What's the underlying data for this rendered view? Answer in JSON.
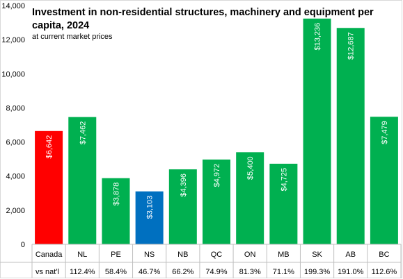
{
  "chart_data": {
    "type": "bar",
    "title": "Investment in non-residential structures, machinery and equipment per capita, 2024",
    "subtitle": "at current market prices",
    "categories": [
      "Canada",
      "NL",
      "PE",
      "NS",
      "NB",
      "QC",
      "ON",
      "MB",
      "SK",
      "AB",
      "BC"
    ],
    "values": [
      6642,
      7462,
      3878,
      3103,
      4396,
      4972,
      5400,
      4725,
      13236,
      12687,
      7479
    ],
    "data_labels": [
      "$6,642",
      "$7,462",
      "$3,878",
      "$3,103",
      "$4,396",
      "$4,972",
      "$5,400",
      "$4,725",
      "$13,236",
      "$12,687",
      "$7,479"
    ],
    "colors": [
      "#ff0000",
      "#00b050",
      "#00b050",
      "#0070c0",
      "#00b050",
      "#00b050",
      "#00b050",
      "#00b050",
      "#00b050",
      "#00b050",
      "#00b050"
    ],
    "ylim": [
      0,
      14000
    ],
    "yticks": [
      0,
      2000,
      4000,
      6000,
      8000,
      10000,
      12000,
      14000
    ],
    "ytick_labels": [
      "0",
      "2,000",
      "4,000",
      "6,000",
      "8,000",
      "10,000",
      "12,000",
      "14,000"
    ],
    "grid": false,
    "legend": "none",
    "secondary_row": {
      "label": "vs nat'l",
      "values": [
        "",
        "112.4%",
        "58.4%",
        "46.7%",
        "66.2%",
        "74.9%",
        "81.3%",
        "71.1%",
        "199.3%",
        "191.0%",
        "112.6%"
      ]
    }
  }
}
